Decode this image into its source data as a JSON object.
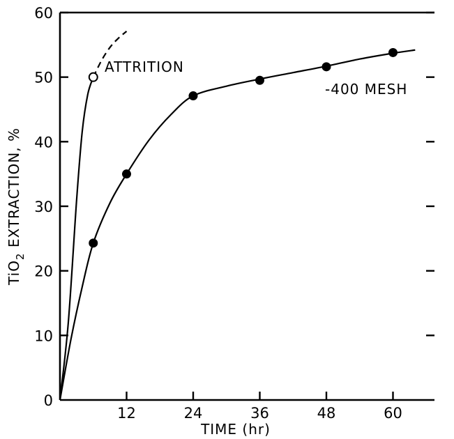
{
  "chart_data": {
    "type": "line",
    "title": "",
    "xlabel": "TIME (hr)",
    "ylabel": "TiO2 EXTRACTION, %",
    "ylabel_parts": {
      "pre": "TiO",
      "sub": "2",
      "post": " EXTRACTION, %"
    },
    "xlim": [
      0,
      69
    ],
    "ylim": [
      0,
      60
    ],
    "x_ticks": [
      12,
      24,
      36,
      48,
      60
    ],
    "x_tick_labels": [
      "12",
      "24",
      "36",
      "48",
      "60"
    ],
    "y_ticks": [
      0,
      10,
      20,
      30,
      40,
      50,
      60
    ],
    "y_tick_labels": [
      "0",
      "10",
      "20",
      "30",
      "40",
      "50",
      "60"
    ],
    "grid": false,
    "series": [
      {
        "name": "-400 MESH",
        "marker": "filled-circle",
        "points": [
          {
            "x": 6,
            "y": 24.3
          },
          {
            "x": 12,
            "y": 35
          },
          {
            "x": 24,
            "y": 47.1
          },
          {
            "x": 36,
            "y": 49.5
          },
          {
            "x": 48,
            "y": 51.6
          },
          {
            "x": 60,
            "y": 53.8
          }
        ],
        "curve": [
          [
            0,
            0
          ],
          [
            2,
            9.5
          ],
          [
            4,
            17.5
          ],
          [
            6,
            24.3
          ],
          [
            9,
            30.5
          ],
          [
            12,
            35
          ],
          [
            16,
            40.2
          ],
          [
            20,
            44.2
          ],
          [
            24,
            47.1
          ],
          [
            30,
            48.6
          ],
          [
            36,
            49.7
          ],
          [
            42,
            50.7
          ],
          [
            48,
            51.7
          ],
          [
            54,
            52.8
          ],
          [
            60,
            53.7
          ],
          [
            64,
            54.2
          ]
        ]
      },
      {
        "name": "ATTRITION",
        "marker": "open-circle",
        "points": [
          {
            "x": 6,
            "y": 50
          }
        ],
        "curve": [
          [
            0,
            0
          ],
          [
            1.5,
            12
          ],
          [
            3,
            31
          ],
          [
            4,
            41.5
          ],
          [
            5,
            47.3
          ],
          [
            6,
            50
          ]
        ],
        "extrapolated_curve": [
          [
            6,
            50
          ],
          [
            7.5,
            52.6
          ],
          [
            9,
            54.6
          ],
          [
            10.5,
            56
          ],
          [
            12,
            57.1
          ]
        ]
      }
    ],
    "annotations": [
      {
        "text": "ATTRITION",
        "series": "ATTRITION"
      },
      {
        "text": "-400 MESH",
        "series": "-400 MESH"
      }
    ]
  }
}
